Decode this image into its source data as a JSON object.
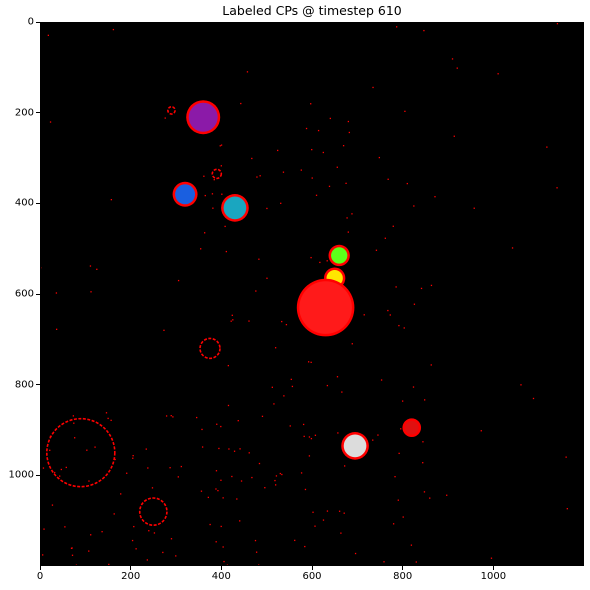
{
  "figure": {
    "title": "Labeled CPs @ timestep 610"
  },
  "chart_data": {
    "type": "heatmap",
    "title": "Labeled CPs @ timestep 610",
    "xlabel": "",
    "ylabel": "",
    "xlim": [
      0,
      1200
    ],
    "ylim": [
      1200,
      0
    ],
    "x_ticks": [
      0,
      200,
      400,
      600,
      800,
      1000
    ],
    "y_ticks": [
      0,
      200,
      400,
      600,
      800,
      1000
    ],
    "background_color": "#000000",
    "colors": {
      "boundary": "#ff0000",
      "purple": "#8b1aa8",
      "blue": "#1a5fe0",
      "cyan": "#1aa6c0",
      "green": "#5cff1a",
      "yellow": "#ffe600",
      "red": "#ff1a1a",
      "white": "#dcdcdc",
      "dark_red": "#e01010"
    },
    "labeled_regions": [
      {
        "color": "purple",
        "x": 360,
        "y": 210,
        "r": 32
      },
      {
        "color": "blue",
        "x": 320,
        "y": 380,
        "r": 22
      },
      {
        "color": "cyan",
        "x": 430,
        "y": 410,
        "r": 25
      },
      {
        "color": "green",
        "x": 660,
        "y": 515,
        "r": 18
      },
      {
        "color": "yellow",
        "x": 650,
        "y": 565,
        "r": 18
      },
      {
        "color": "red",
        "x": 630,
        "y": 630,
        "r": 58
      },
      {
        "color": "white",
        "x": 695,
        "y": 935,
        "r": 25
      },
      {
        "color": "dark_red",
        "x": 820,
        "y": 895,
        "r": 15
      }
    ],
    "boundary_rings": [
      {
        "x": 290,
        "y": 195,
        "r": 8
      },
      {
        "x": 390,
        "y": 335,
        "r": 10
      },
      {
        "x": 375,
        "y": 720,
        "r": 22
      },
      {
        "x": 90,
        "y": 950,
        "r": 75
      },
      {
        "x": 250,
        "y": 1080,
        "r": 30
      }
    ]
  }
}
